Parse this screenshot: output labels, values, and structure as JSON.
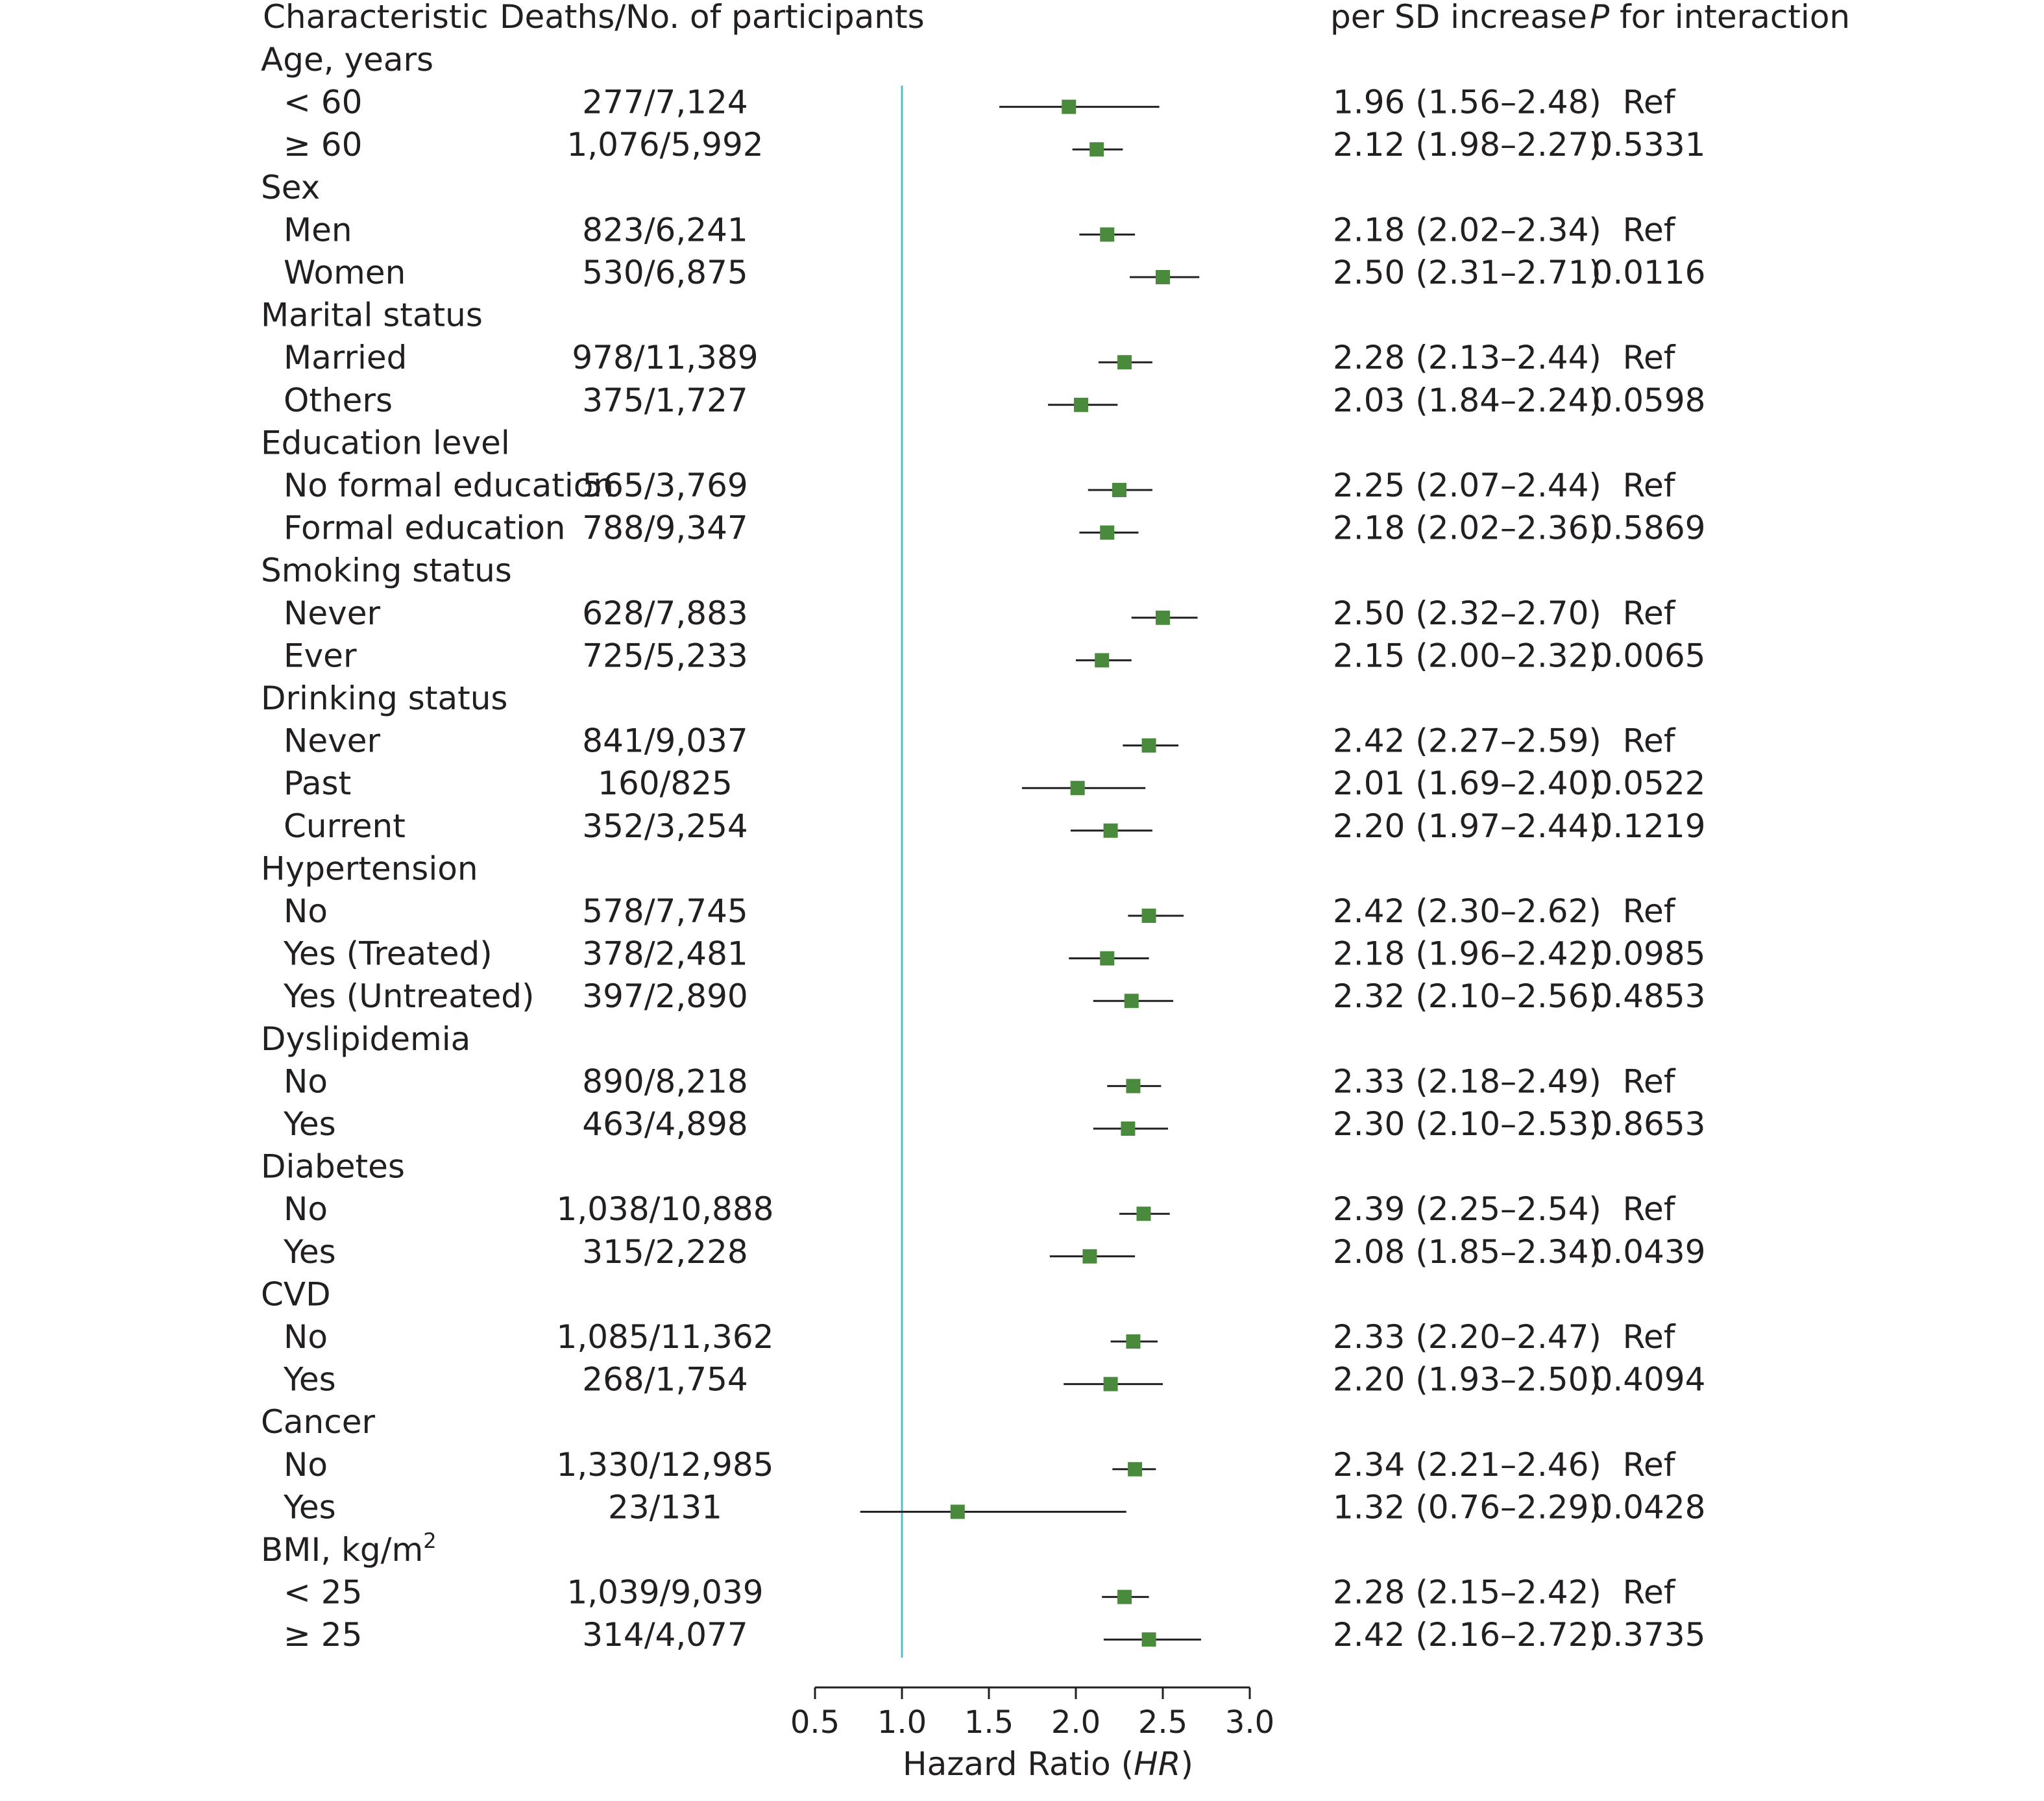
{
  "chart_data": {
    "type": "forest",
    "headers": {
      "characteristic": "Characteristic",
      "deaths": "Deaths/No. of participants",
      "per_sd": "per SD increase",
      "p_italic": "P",
      "p_rest": " for interaction"
    },
    "rows": [
      {
        "kind": "group",
        "label": "Age, years"
      },
      {
        "kind": "sub",
        "label": "< 60",
        "deaths": "277/7,124",
        "hr": 1.96,
        "lo": 1.56,
        "hi": 2.48,
        "hr_text": "1.96 (1.56–2.48)",
        "p": "Ref"
      },
      {
        "kind": "sub",
        "label": "≥ 60",
        "deaths": "1,076/5,992",
        "hr": 2.12,
        "lo": 1.98,
        "hi": 2.27,
        "hr_text": "2.12 (1.98–2.27)",
        "p": "0.5331"
      },
      {
        "kind": "group",
        "label": "Sex"
      },
      {
        "kind": "sub",
        "label": "Men",
        "deaths": "823/6,241",
        "hr": 2.18,
        "lo": 2.02,
        "hi": 2.34,
        "hr_text": "2.18 (2.02–2.34)",
        "p": "Ref"
      },
      {
        "kind": "sub",
        "label": "Women",
        "deaths": "530/6,875",
        "hr": 2.5,
        "lo": 2.31,
        "hi": 2.71,
        "hr_text": "2.50 (2.31–2.71)",
        "p": "0.0116"
      },
      {
        "kind": "group",
        "label": "Marital status"
      },
      {
        "kind": "sub",
        "label": "Married",
        "deaths": "978/11,389",
        "hr": 2.28,
        "lo": 2.13,
        "hi": 2.44,
        "hr_text": "2.28 (2.13–2.44)",
        "p": "Ref"
      },
      {
        "kind": "sub",
        "label": "Others",
        "deaths": "375/1,727",
        "hr": 2.03,
        "lo": 1.84,
        "hi": 2.24,
        "hr_text": "2.03 (1.84–2.24)",
        "p": "0.0598"
      },
      {
        "kind": "group",
        "label": "Education level"
      },
      {
        "kind": "sub",
        "label": "No formal education",
        "deaths": "565/3,769",
        "hr": 2.25,
        "lo": 2.07,
        "hi": 2.44,
        "hr_text": "2.25 (2.07–2.44)",
        "p": "Ref"
      },
      {
        "kind": "sub",
        "label": "Formal education",
        "deaths": "788/9,347",
        "hr": 2.18,
        "lo": 2.02,
        "hi": 2.36,
        "hr_text": "2.18 (2.02–2.36)",
        "p": "0.5869"
      },
      {
        "kind": "group",
        "label": "Smoking status"
      },
      {
        "kind": "sub",
        "label": "Never",
        "deaths": "628/7,883",
        "hr": 2.5,
        "lo": 2.32,
        "hi": 2.7,
        "hr_text": "2.50 (2.32–2.70)",
        "p": "Ref"
      },
      {
        "kind": "sub",
        "label": "Ever",
        "deaths": "725/5,233",
        "hr": 2.15,
        "lo": 2.0,
        "hi": 2.32,
        "hr_text": "2.15 (2.00–2.32)",
        "p": "0.0065"
      },
      {
        "kind": "group",
        "label": "Drinking status"
      },
      {
        "kind": "sub",
        "label": "Never",
        "deaths": "841/9,037",
        "hr": 2.42,
        "lo": 2.27,
        "hi": 2.59,
        "hr_text": "2.42 (2.27–2.59)",
        "p": "Ref"
      },
      {
        "kind": "sub",
        "label": "Past",
        "deaths": "160/825",
        "hr": 2.01,
        "lo": 1.69,
        "hi": 2.4,
        "hr_text": "2.01 (1.69–2.40)",
        "p": "0.0522"
      },
      {
        "kind": "sub",
        "label": "Current",
        "deaths": "352/3,254",
        "hr": 2.2,
        "lo": 1.97,
        "hi": 2.44,
        "hr_text": "2.20 (1.97–2.44)",
        "p": "0.1219"
      },
      {
        "kind": "group",
        "label": "Hypertension"
      },
      {
        "kind": "sub",
        "label": "No",
        "deaths": "578/7,745",
        "hr": 2.42,
        "lo": 2.3,
        "hi": 2.62,
        "hr_text": "2.42 (2.30–2.62)",
        "p": "Ref"
      },
      {
        "kind": "sub",
        "label": "Yes (Treated)",
        "deaths": "378/2,481",
        "hr": 2.18,
        "lo": 1.96,
        "hi": 2.42,
        "hr_text": "2.18 (1.96–2.42)",
        "p": "0.0985"
      },
      {
        "kind": "sub",
        "label": "Yes (Untreated)",
        "deaths": "397/2,890",
        "hr": 2.32,
        "lo": 2.1,
        "hi": 2.56,
        "hr_text": "2.32 (2.10–2.56)",
        "p": "0.4853"
      },
      {
        "kind": "group",
        "label": "Dyslipidemia"
      },
      {
        "kind": "sub",
        "label": "No",
        "deaths": "890/8,218",
        "hr": 2.33,
        "lo": 2.18,
        "hi": 2.49,
        "hr_text": "2.33 (2.18–2.49)",
        "p": "Ref"
      },
      {
        "kind": "sub",
        "label": "Yes",
        "deaths": "463/4,898",
        "hr": 2.3,
        "lo": 2.1,
        "hi": 2.53,
        "hr_text": "2.30 (2.10–2.53)",
        "p": "0.8653"
      },
      {
        "kind": "group",
        "label": "Diabetes"
      },
      {
        "kind": "sub",
        "label": "No",
        "deaths": "1,038/10,888",
        "hr": 2.39,
        "lo": 2.25,
        "hi": 2.54,
        "hr_text": "2.39 (2.25–2.54)",
        "p": "Ref"
      },
      {
        "kind": "sub",
        "label": "Yes",
        "deaths": "315/2,228",
        "hr": 2.08,
        "lo": 1.85,
        "hi": 2.34,
        "hr_text": "2.08 (1.85–2.34)",
        "p": "0.0439"
      },
      {
        "kind": "group",
        "label": "CVD"
      },
      {
        "kind": "sub",
        "label": "No",
        "deaths": "1,085/11,362",
        "hr": 2.33,
        "lo": 2.2,
        "hi": 2.47,
        "hr_text": "2.33 (2.20–2.47)",
        "p": "Ref"
      },
      {
        "kind": "sub",
        "label": "Yes",
        "deaths": "268/1,754",
        "hr": 2.2,
        "lo": 1.93,
        "hi": 2.5,
        "hr_text": "2.20 (1.93–2.50)",
        "p": "0.4094"
      },
      {
        "kind": "group",
        "label": "Cancer"
      },
      {
        "kind": "sub",
        "label": "No",
        "deaths": "1,330/12,985",
        "hr": 2.34,
        "lo": 2.21,
        "hi": 2.46,
        "hr_text": "2.34 (2.21–2.46)",
        "p": "Ref"
      },
      {
        "kind": "sub",
        "label": "Yes",
        "deaths": "23/131",
        "hr": 1.32,
        "lo": 0.76,
        "hi": 2.29,
        "hr_text": "1.32 (0.76–2.29)",
        "p": "0.0428"
      },
      {
        "kind": "group",
        "label": "BMI, kg/m",
        "sup": "2"
      },
      {
        "kind": "sub",
        "label": "< 25",
        "deaths": "1,039/9,039",
        "hr": 2.28,
        "lo": 2.15,
        "hi": 2.42,
        "hr_text": "2.28 (2.15–2.42)",
        "p": "Ref"
      },
      {
        "kind": "sub",
        "label": "≥ 25",
        "deaths": "314/4,077",
        "hr": 2.42,
        "lo": 2.16,
        "hi": 2.72,
        "hr_text": "2.42 (2.16–2.72)",
        "p": "0.3735"
      }
    ],
    "x_axis": {
      "label_prefix": "Hazard Ratio (",
      "label_italic": "HR",
      "label_suffix": ")",
      "range": [
        0.5,
        3.0
      ],
      "ticks": [
        0.5,
        1.0,
        1.5,
        2.0,
        2.5,
        3.0
      ],
      "tick_labels": [
        "0.5",
        "1.0",
        "1.5",
        "2.0",
        "2.5",
        "3.0"
      ]
    },
    "reference_line": 1.0,
    "colors": {
      "marker": "#4a8a3c",
      "ci_line": "#231f20",
      "reference_line": "#5bbcc0",
      "text": "#231f20"
    }
  }
}
